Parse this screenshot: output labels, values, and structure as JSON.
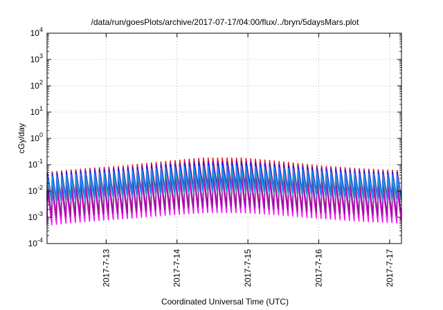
{
  "chart_data": {
    "type": "line",
    "title": "/data/run/goesPlots/archive/2017-07-17/04:00/flux/../bryn/5daysMars.plot",
    "xlabel": "Coordinated Universal Time (UTC)",
    "ylabel": "cGy/day",
    "yscale": "log",
    "ylim": [
      0.0001,
      10000
    ],
    "y_ticks": [
      {
        "value": 0.0001,
        "base": "10",
        "exp": "-4"
      },
      {
        "value": 0.001,
        "base": "10",
        "exp": "-3"
      },
      {
        "value": 0.01,
        "base": "10",
        "exp": "-2"
      },
      {
        "value": 0.1,
        "base": "10",
        "exp": "-1"
      },
      {
        "value": 1,
        "base": "10",
        "exp": "0"
      },
      {
        "value": 10,
        "base": "10",
        "exp": "1"
      },
      {
        "value": 100,
        "base": "10",
        "exp": "2"
      },
      {
        "value": 1000,
        "base": "10",
        "exp": "3"
      },
      {
        "value": 10000,
        "base": "10",
        "exp": "4"
      }
    ],
    "xlim": [
      "2017-07-12 04:00",
      "2017-07-17 04:00"
    ],
    "x_ticks": [
      "2017-7-13",
      "2017-7-14",
      "2017-7-15",
      "2017-7-16",
      "2017-7-17"
    ],
    "grid": true,
    "sawtooth_period_hours": 1.6,
    "series": [
      {
        "color": "#e8141c",
        "peak_amplitude": [
          0.05,
          0.07,
          0.09,
          0.13,
          0.18,
          0.18,
          0.13,
          0.09,
          0.07,
          0.06
        ],
        "decay_factor": 0.08
      },
      {
        "color": "#1a1aee",
        "peak_amplitude": [
          0.045,
          0.06,
          0.075,
          0.1,
          0.13,
          0.13,
          0.1,
          0.075,
          0.06,
          0.05
        ],
        "decay_factor": 0.1
      },
      {
        "color": "#2288ee",
        "peak_amplitude": [
          0.035,
          0.045,
          0.055,
          0.075,
          0.09,
          0.09,
          0.075,
          0.055,
          0.045,
          0.04
        ],
        "decay_factor": 0.12
      },
      {
        "color": "#8b1a8b",
        "peak_amplitude": [
          0.02,
          0.025,
          0.03,
          0.04,
          0.05,
          0.05,
          0.04,
          0.03,
          0.025,
          0.022
        ],
        "decay_factor": 0.05
      },
      {
        "color": "#20b2aa",
        "peak_amplitude": [
          0.025,
          0.03,
          0.04,
          0.05,
          0.06,
          0.06,
          0.05,
          0.04,
          0.03,
          0.028
        ],
        "decay_factor": 0.15
      },
      {
        "color": "#ee10ee",
        "peak_amplitude": [
          0.01,
          0.014,
          0.018,
          0.024,
          0.03,
          0.03,
          0.024,
          0.018,
          0.014,
          0.012
        ],
        "decay_factor": 0.05
      }
    ]
  }
}
